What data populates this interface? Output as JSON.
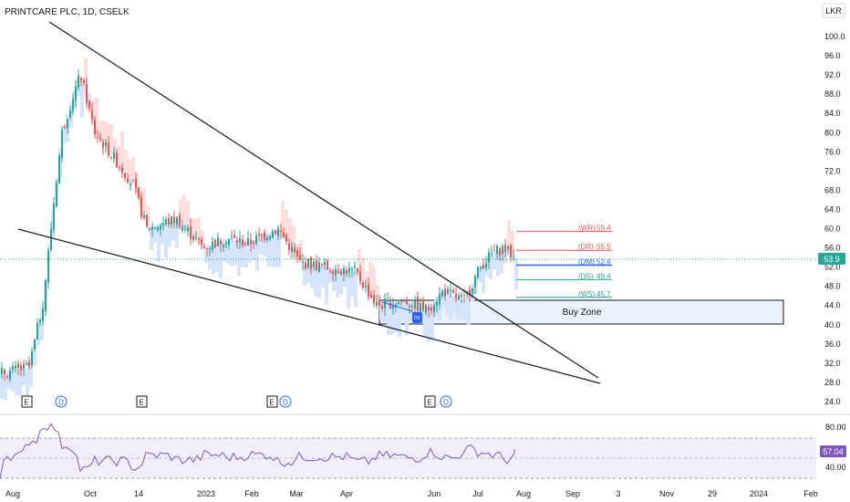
{
  "header": {
    "symbol_title": "PRINTCARE PLC, 1D, CSELK",
    "currency_button": "LKR"
  },
  "price_axis": {
    "ticks": [
      "100.0",
      "96.0",
      "92.0",
      "88.0",
      "84.0",
      "80.0",
      "76.0",
      "72.0",
      "68.0",
      "64.0",
      "60.0",
      "56.0",
      "52.0",
      "48.0",
      "44.0",
      "40.0",
      "36.0",
      "32.0",
      "28.0",
      "24.0"
    ],
    "last_price_label": "53.9",
    "last_price_color": "#26a69a"
  },
  "time_axis": {
    "labels": [
      "Aug",
      "Oct",
      "14",
      "2023",
      "Feb",
      "Mar",
      "Apr",
      "Jun",
      "Jul",
      "Aug",
      "Sep",
      "3",
      "Nov",
      "29",
      "2024",
      "Feb"
    ]
  },
  "events": [
    {
      "type": "E"
    },
    {
      "type": "D"
    },
    {
      "type": "E"
    },
    {
      "type": "E"
    },
    {
      "type": "D"
    },
    {
      "type": "E"
    },
    {
      "type": "D"
    }
  ],
  "pivot_levels": [
    {
      "label": "(WR)",
      "value": "59.4",
      "color": "#ef5350"
    },
    {
      "label": "(DR)",
      "value": "55.5",
      "color": "#ef5350"
    },
    {
      "label": "(DM)",
      "value": "52.4",
      "color": "#2962ff"
    },
    {
      "label": "(DS)",
      "value": "49.4",
      "color": "#26a69a"
    },
    {
      "label": "(WS)",
      "value": "45.7",
      "color": "#26a69a"
    }
  ],
  "annotations": {
    "buy_zone": "Buy Zone",
    "marker": "DV"
  },
  "rsi": {
    "ticks": [
      "80.00",
      "40.00"
    ],
    "value_label": "57.04",
    "color": "#7e57c2"
  },
  "colors": {
    "up": "#26a69a",
    "down": "#ef5350",
    "band_up": "#d6e4fb",
    "band_down": "#fcdede",
    "trendline": "#131722"
  },
  "chart_data": {
    "type": "candlestick",
    "title": "PRINTCARE PLC, 1D, CSELK",
    "y_range": [
      24,
      100
    ],
    "approx_close_series": [
      {
        "x": "2022-08-01",
        "y": 30
      },
      {
        "x": "2022-08-20",
        "y": 31
      },
      {
        "x": "2022-08-30",
        "y": 45
      },
      {
        "x": "2022-09-05",
        "y": 62
      },
      {
        "x": "2022-09-12",
        "y": 80
      },
      {
        "x": "2022-09-20",
        "y": 88
      },
      {
        "x": "2022-09-25",
        "y": 92
      },
      {
        "x": "2022-10-05",
        "y": 80
      },
      {
        "x": "2022-10-20",
        "y": 74
      },
      {
        "x": "2022-11-01",
        "y": 69
      },
      {
        "x": "2022-11-10",
        "y": 60
      },
      {
        "x": "2022-12-01",
        "y": 62
      },
      {
        "x": "2022-12-20",
        "y": 56
      },
      {
        "x": "2023-01-05",
        "y": 58
      },
      {
        "x": "2023-01-20",
        "y": 57
      },
      {
        "x": "2023-02-10",
        "y": 60
      },
      {
        "x": "2023-02-25",
        "y": 53
      },
      {
        "x": "2023-03-15",
        "y": 52
      },
      {
        "x": "2023-04-05",
        "y": 51
      },
      {
        "x": "2023-04-20",
        "y": 44
      },
      {
        "x": "2023-05-10",
        "y": 45
      },
      {
        "x": "2023-05-25",
        "y": 43
      },
      {
        "x": "2023-06-05",
        "y": 47
      },
      {
        "x": "2023-06-20",
        "y": 45
      },
      {
        "x": "2023-07-01",
        "y": 52
      },
      {
        "x": "2023-07-10",
        "y": 55
      },
      {
        "x": "2023-07-18",
        "y": 56
      },
      {
        "x": "2023-07-25",
        "y": 53.9
      }
    ],
    "trendlines": [
      {
        "from": {
          "x": "2022-08-25",
          "y": 103
        },
        "to": {
          "x": "2023-09-05",
          "y": 28
        }
      },
      {
        "from": {
          "x": "2022-08-01",
          "y": 60
        },
        "to": {
          "x": "2023-09-05",
          "y": 28
        }
      }
    ],
    "buy_zone_range": [
      40.1,
      45.2
    ],
    "rsi_last": 57.04,
    "rsi_range": [
      20,
      90
    ]
  }
}
